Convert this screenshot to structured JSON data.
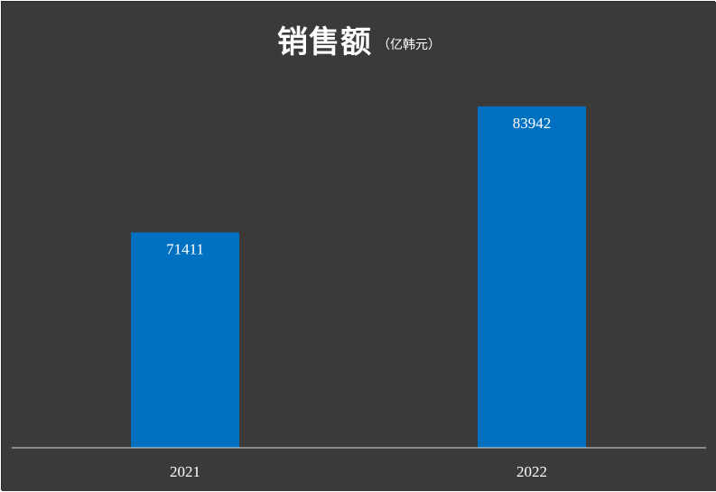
{
  "colors": {
    "background": "#3b3a39",
    "bar": "#0070c0",
    "text": "#ffffff",
    "axis": "#dddddd"
  },
  "chart_data": {
    "type": "bar",
    "title": "销售额",
    "subtitle": "（亿韩元）",
    "categories": [
      "2021",
      "2022"
    ],
    "values": [
      71411,
      83942
    ],
    "xlabel": "",
    "ylabel": "",
    "ylim": [
      50000,
      85000
    ],
    "grid": false,
    "data_labels": true,
    "legend": "none"
  }
}
